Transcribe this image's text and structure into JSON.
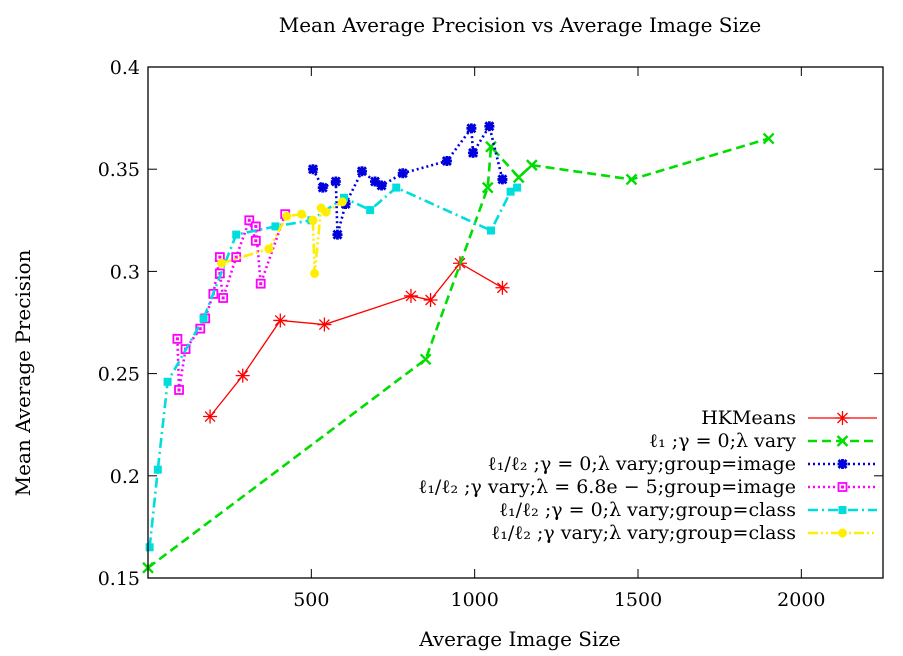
{
  "chart_data": {
    "type": "line",
    "title": "Mean Average Precision vs Average Image Size",
    "xlabel": "Average Image Size",
    "ylabel": "Mean Average Precision",
    "xlim": [
      0,
      2250
    ],
    "ylim": [
      0.15,
      0.4
    ],
    "xticks": [
      "500",
      "1000",
      "1500",
      "2000"
    ],
    "yticks": [
      "0.15",
      "0.2",
      "0.25",
      "0.3",
      "0.35",
      "0.4"
    ],
    "grid": false,
    "legend_position": "bottom-right",
    "series": [
      {
        "name": "HKMeans",
        "color": "#ff0000",
        "marker": "star",
        "dash": "solid",
        "points": [
          [
            190,
            0.229
          ],
          [
            290,
            0.249
          ],
          [
            405,
            0.276
          ],
          [
            540,
            0.274
          ],
          [
            805,
            0.288
          ],
          [
            865,
            0.286
          ],
          [
            955,
            0.304
          ],
          [
            1085,
            0.292
          ]
        ]
      },
      {
        "name": "ℓ₁ ;γ = 0;λ vary",
        "color": "#00dd00",
        "marker": "x",
        "dash": "dashed",
        "points": [
          [
            0,
            0.155
          ],
          [
            850,
            0.257
          ],
          [
            1040,
            0.341
          ],
          [
            1050,
            0.361
          ],
          [
            1135,
            0.346
          ],
          [
            1175,
            0.352
          ],
          [
            1480,
            0.345
          ],
          [
            1900,
            0.365
          ]
        ]
      },
      {
        "name": "ℓ₁/ℓ₂ ;γ = 0;λ vary;group=image",
        "color": "#0000dd",
        "marker": "starfilled",
        "dash": "dotted",
        "points": [
          [
            505,
            0.35
          ],
          [
            535,
            0.341
          ],
          [
            575,
            0.344
          ],
          [
            580,
            0.318
          ],
          [
            605,
            0.333
          ],
          [
            655,
            0.349
          ],
          [
            695,
            0.344
          ],
          [
            715,
            0.342
          ],
          [
            780,
            0.348
          ],
          [
            915,
            0.354
          ],
          [
            990,
            0.37
          ],
          [
            995,
            0.358
          ],
          [
            1045,
            0.371
          ],
          [
            1085,
            0.345
          ]
        ]
      },
      {
        "name": "ℓ₁/ℓ₂ ;γ vary;λ = 6.8e − 5;group=image",
        "color": "#ff00ff",
        "marker": "square",
        "dash": "dotted",
        "points": [
          [
            90,
            0.267
          ],
          [
            95,
            0.242
          ],
          [
            115,
            0.262
          ],
          [
            160,
            0.272
          ],
          [
            175,
            0.277
          ],
          [
            200,
            0.289
          ],
          [
            220,
            0.307
          ],
          [
            220,
            0.299
          ],
          [
            230,
            0.287
          ],
          [
            270,
            0.307
          ],
          [
            310,
            0.325
          ],
          [
            330,
            0.315
          ],
          [
            330,
            0.322
          ],
          [
            345,
            0.294
          ],
          [
            420,
            0.328
          ]
        ]
      },
      {
        "name": "ℓ₁/ℓ₂ ;γ = 0;λ vary;group=class",
        "color": "#00dddd",
        "marker": "squarefilled",
        "dash": "dashdot",
        "points": [
          [
            5,
            0.165
          ],
          [
            30,
            0.203
          ],
          [
            60,
            0.246
          ],
          [
            170,
            0.277
          ],
          [
            270,
            0.318
          ],
          [
            390,
            0.322
          ],
          [
            500,
            0.325
          ],
          [
            600,
            0.336
          ],
          [
            680,
            0.33
          ],
          [
            760,
            0.341
          ],
          [
            1050,
            0.32
          ],
          [
            1110,
            0.339
          ],
          [
            1130,
            0.341
          ]
        ]
      },
      {
        "name": "ℓ₁/ℓ₂ ;γ vary;λ vary;group=class",
        "color": "#ffee00",
        "marker": "circle",
        "dash": "dashdotdot",
        "points": [
          [
            225,
            0.304
          ],
          [
            370,
            0.311
          ],
          [
            425,
            0.327
          ],
          [
            470,
            0.328
          ],
          [
            505,
            0.325
          ],
          [
            510,
            0.299
          ],
          [
            530,
            0.331
          ],
          [
            545,
            0.329
          ],
          [
            595,
            0.334
          ]
        ]
      }
    ]
  }
}
